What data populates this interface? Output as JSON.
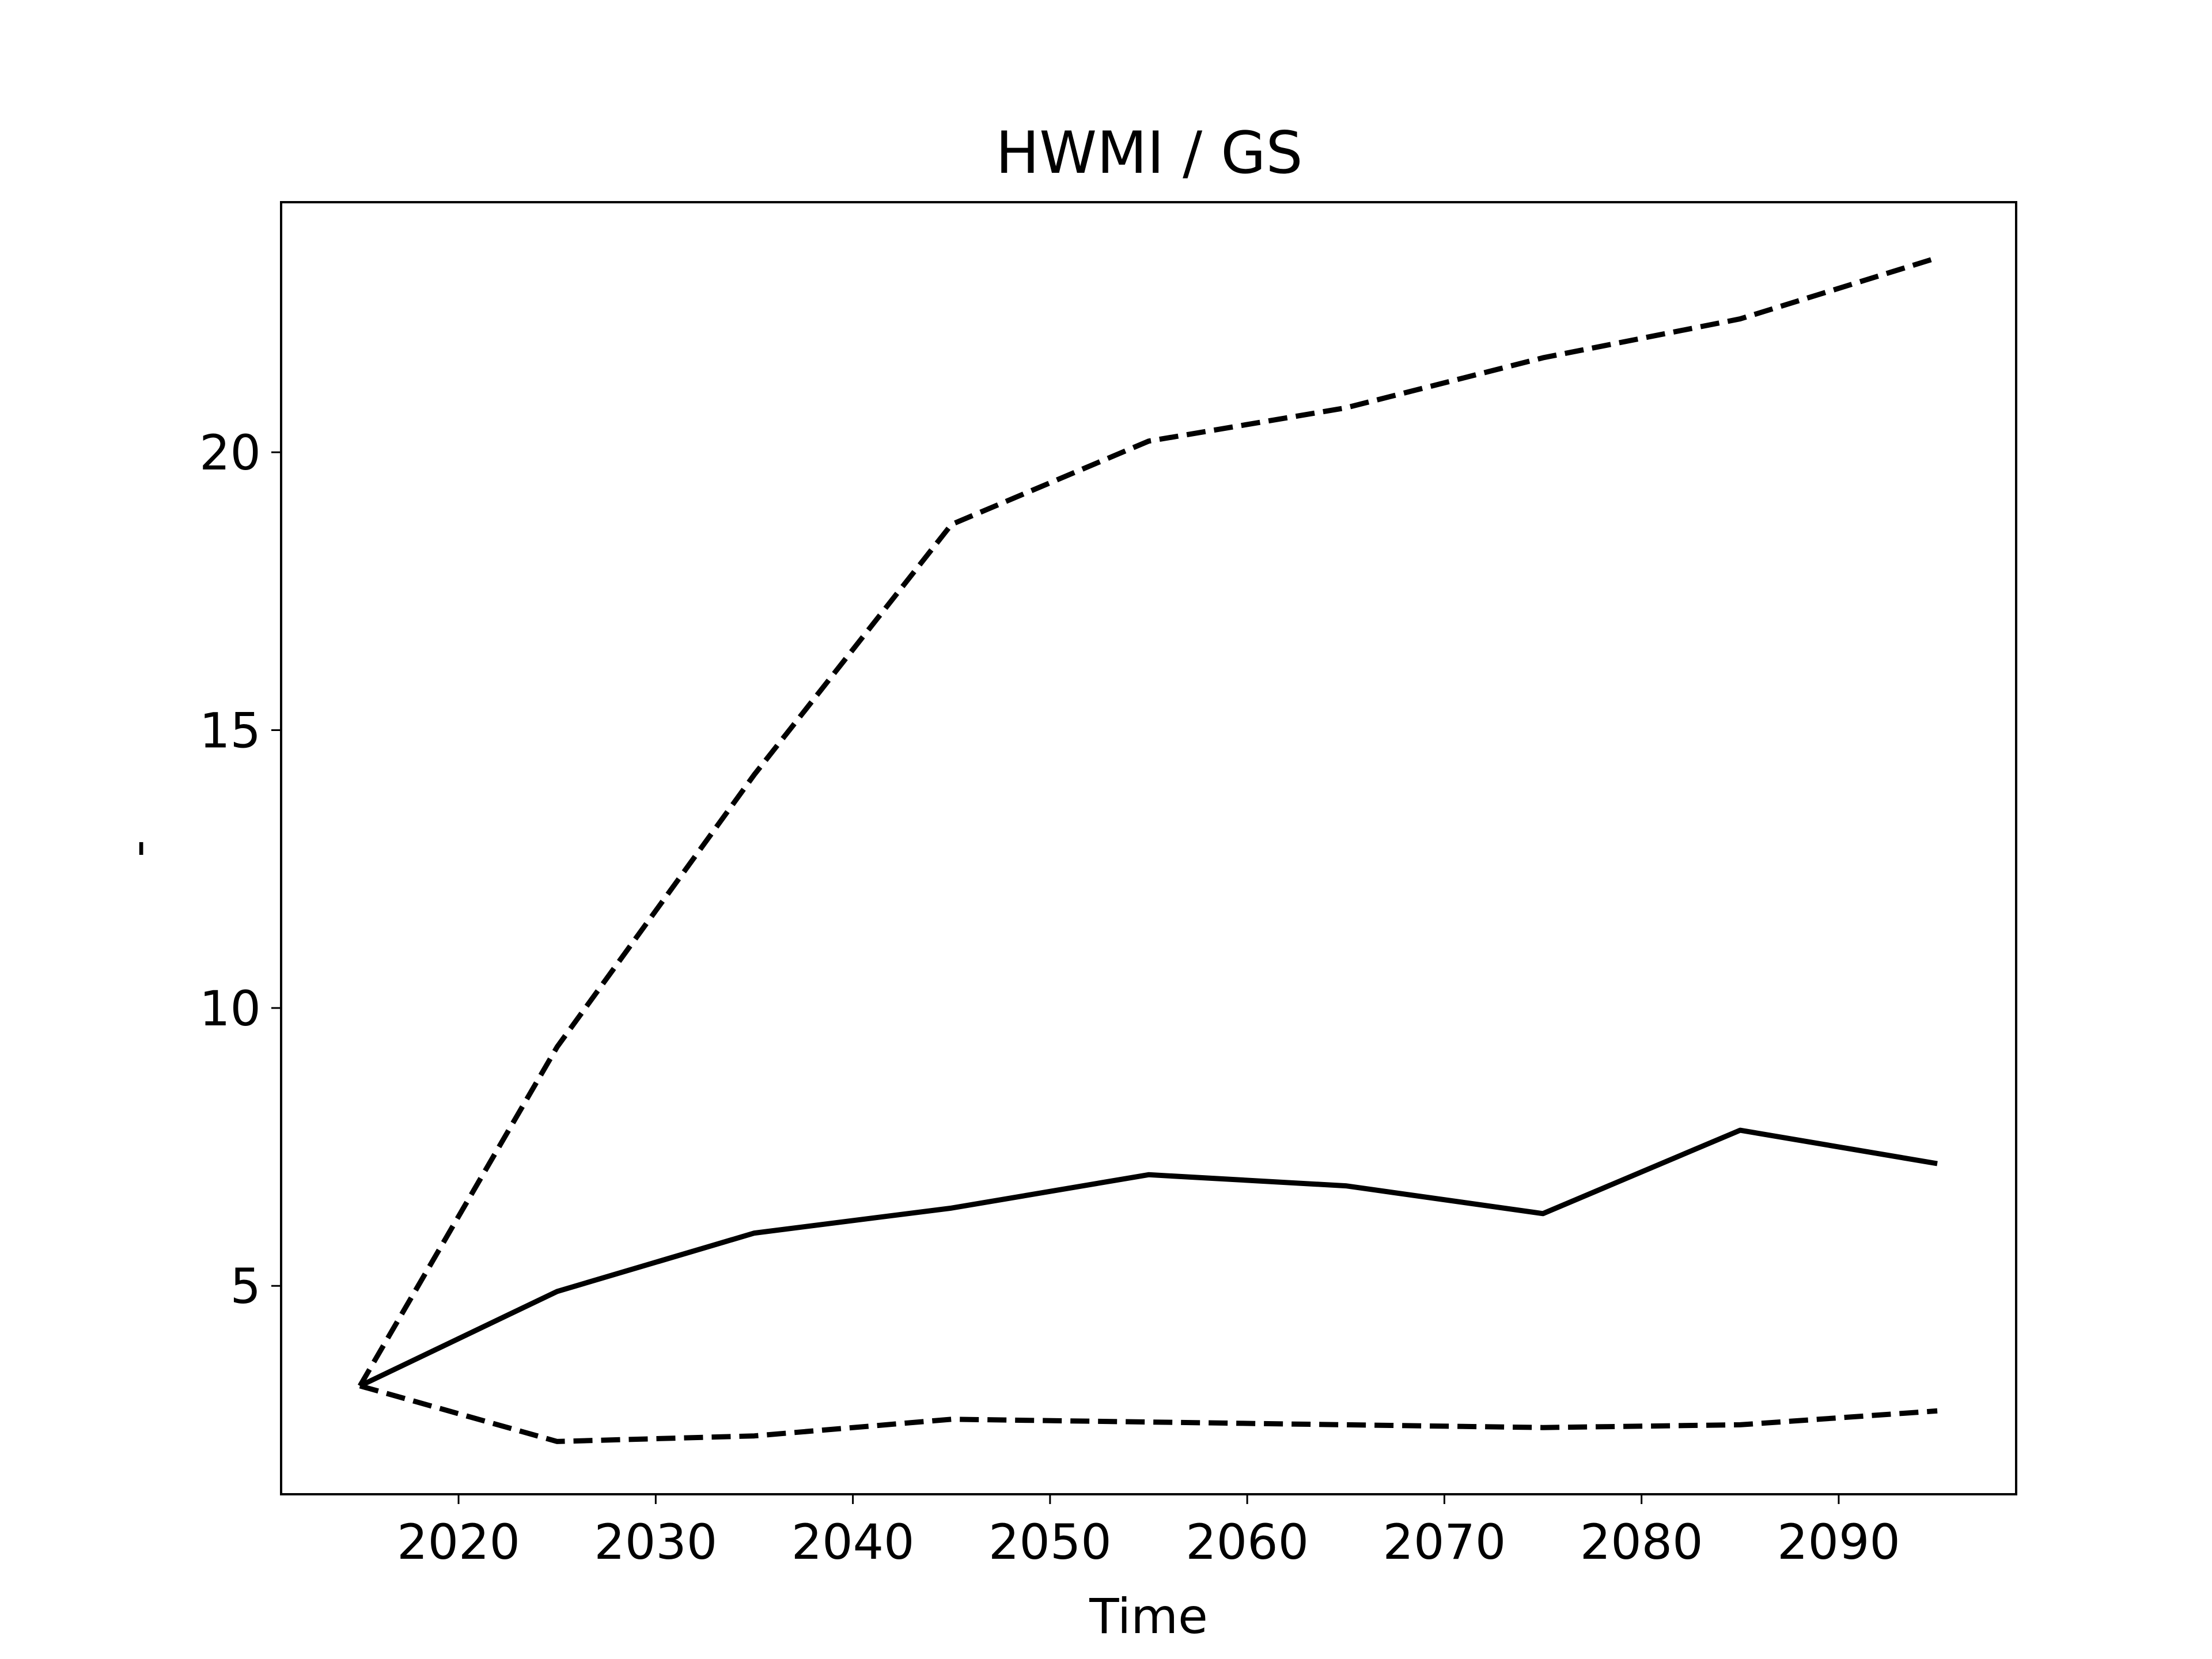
{
  "chart_data": {
    "type": "line",
    "title": "HWMI / GS",
    "xlabel": "Time",
    "ylabel": "-",
    "xlim": [
      2011,
      2099
    ],
    "ylim": [
      1.25,
      24.5
    ],
    "xticks": [
      2020,
      2030,
      2040,
      2050,
      2060,
      2070,
      2080,
      2090
    ],
    "yticks": [
      5,
      10,
      15,
      20
    ],
    "grid": false,
    "legend": "none",
    "x": [
      2015,
      2025,
      2035,
      2045,
      2055,
      2065,
      2075,
      2085,
      2095
    ],
    "series": [
      {
        "style": "solid",
        "color": "#000000",
        "values": [
          3.2,
          4.9,
          5.95,
          6.4,
          7.0,
          6.8,
          6.3,
          7.8,
          7.2
        ]
      },
      {
        "style": "dashed",
        "color": "#000000",
        "values": [
          3.2,
          9.3,
          14.2,
          18.7,
          20.2,
          20.8,
          21.7,
          22.4,
          23.5
        ]
      },
      {
        "style": "dashed",
        "color": "#000000",
        "values": [
          3.2,
          2.2,
          2.3,
          2.6,
          2.55,
          2.5,
          2.45,
          2.5,
          2.75
        ]
      }
    ]
  }
}
